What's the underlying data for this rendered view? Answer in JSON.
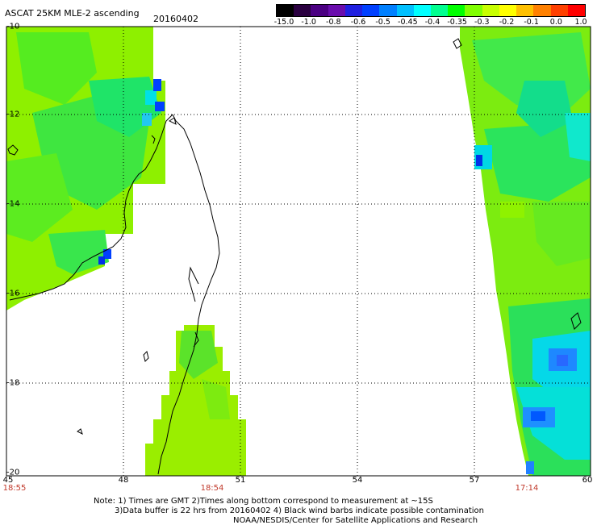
{
  "header": {
    "title": "ASCAT 25KM MLE-2 ascending",
    "date": "20160402"
  },
  "colorbar": {
    "colors": [
      "#000000",
      "#2a0040",
      "#4b0082",
      "#6a0dad",
      "#2020e0",
      "#0040ff",
      "#0080ff",
      "#00c0ff",
      "#00ffff",
      "#00ff90",
      "#00ff00",
      "#80ff00",
      "#c8ff00",
      "#ffff00",
      "#ffc000",
      "#ff8000",
      "#ff4000",
      "#ff0000"
    ],
    "labels": [
      "-15.0",
      "-1.0",
      "-0.8",
      "-0.6",
      "-0.5",
      "-0.45",
      "-0.4",
      "-0.35",
      "-0.3",
      "-0.2",
      "-0.1",
      "0.0",
      "1.0"
    ]
  },
  "axes": {
    "latitudes": [
      "-10",
      "-12",
      "-14",
      "-16",
      "-18",
      "-20"
    ],
    "longitudes": [
      "45",
      "48",
      "51",
      "54",
      "57",
      "60"
    ]
  },
  "times": {
    "left": "18:55",
    "middle": "18:54",
    "right": "17:14"
  },
  "notes": {
    "line1": "Note: 1) Times are GMT 2)Times along bottom correspond to measurement at ~15S",
    "line2": "3)Data buffer is 22 hrs from 20160402 4) Black wind barbs indicate possible contamination",
    "line3": "NOAA/NESDIS/Center for Satellite Applications and Research"
  }
}
